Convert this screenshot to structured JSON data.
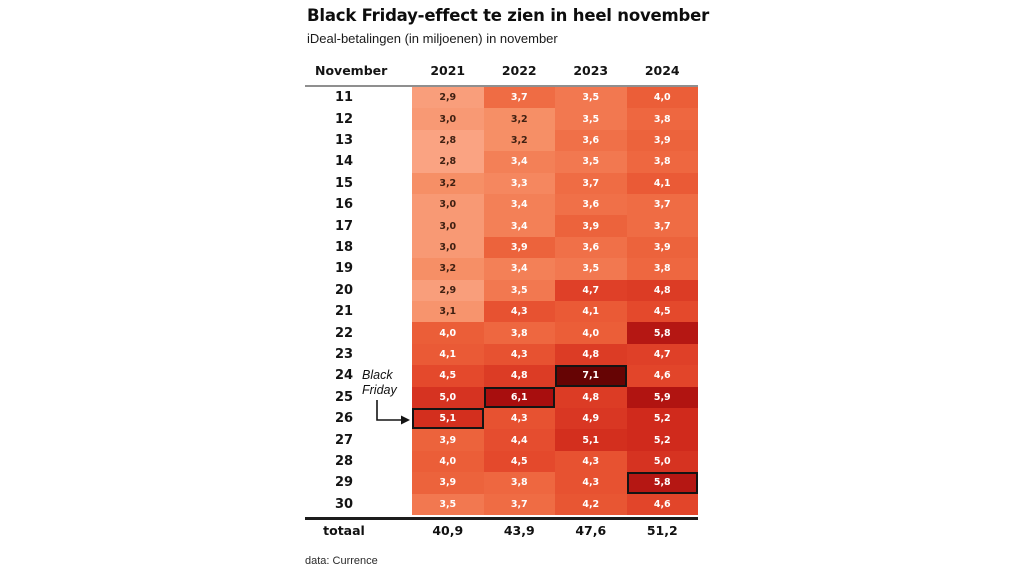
{
  "chart_data": {
    "type": "heatmap",
    "title": "Black Friday-effect te zien in heel november",
    "subtitle": "iDeal-betalingen (in miljoenen) in november",
    "row_header": "November",
    "total_label": "totaal",
    "source": "data: Currence",
    "columns": [
      "2021",
      "2022",
      "2023",
      "2024"
    ],
    "days": [
      11,
      12,
      13,
      14,
      15,
      16,
      17,
      18,
      19,
      20,
      21,
      22,
      23,
      24,
      25,
      26,
      27,
      28,
      29,
      30
    ],
    "series": [
      {
        "name": "2021",
        "values": [
          2.9,
          3.0,
          2.8,
          2.8,
          3.2,
          3.0,
          3.0,
          3.0,
          3.2,
          2.9,
          3.1,
          4.0,
          4.1,
          4.5,
          5.0,
          5.1,
          3.9,
          4.0,
          3.9,
          3.5
        ],
        "total": "40,9"
      },
      {
        "name": "2022",
        "values": [
          3.7,
          3.2,
          3.2,
          3.4,
          3.3,
          3.4,
          3.4,
          3.9,
          3.4,
          3.5,
          4.3,
          3.8,
          4.3,
          4.8,
          6.1,
          4.3,
          4.4,
          4.5,
          3.8,
          3.7
        ],
        "total": "43,9"
      },
      {
        "name": "2023",
        "values": [
          3.5,
          3.5,
          3.6,
          3.5,
          3.7,
          3.6,
          3.9,
          3.6,
          3.5,
          4.7,
          4.1,
          4.0,
          4.8,
          7.1,
          4.8,
          4.9,
          5.1,
          4.3,
          4.3,
          4.2
        ],
        "total": "47,6"
      },
      {
        "name": "2024",
        "values": [
          4.0,
          3.8,
          3.9,
          3.8,
          4.1,
          3.7,
          3.7,
          3.9,
          3.8,
          4.8,
          4.5,
          5.8,
          4.7,
          4.6,
          5.9,
          5.2,
          5.2,
          5.0,
          5.8,
          4.6
        ],
        "total": "51,2"
      }
    ],
    "highlighted_cells": [
      {
        "year": "2021",
        "day": 26
      },
      {
        "year": "2022",
        "day": 25
      },
      {
        "year": "2023",
        "day": 24
      },
      {
        "year": "2024",
        "day": 29
      }
    ],
    "annotation": {
      "text": "Black\nFriday",
      "target": {
        "year": "2021",
        "day": 26
      }
    },
    "value_decimal_separator": ",",
    "color_scale": {
      "stops": [
        [
          2.8,
          "#FAA382"
        ],
        [
          3.2,
          "#F68F66"
        ],
        [
          3.6,
          "#F07048"
        ],
        [
          4.0,
          "#EB5E38"
        ],
        [
          4.6,
          "#E2452A"
        ],
        [
          5.2,
          "#D02A1C"
        ],
        [
          6.1,
          "#A80E0E"
        ],
        [
          7.1,
          "#660404"
        ]
      ]
    },
    "dark_text_max": 3.2,
    "dark_text_color": "#3F2012",
    "light_text_color": "#FFFFFF",
    "highlight_border_color": "#141414",
    "grid_rule_gray": "#8F8F8F",
    "grid_rule_black": "#1C1C1C"
  }
}
